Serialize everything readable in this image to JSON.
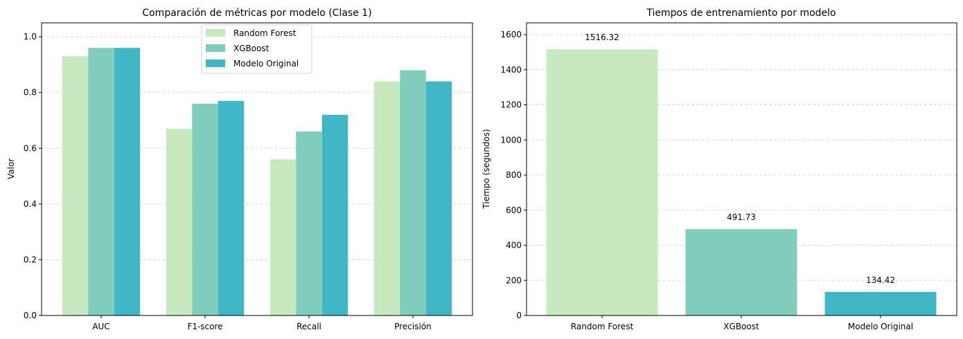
{
  "chart_data": [
    {
      "type": "bar",
      "title": "Comparación de métricas por modelo (Clase 1)",
      "xlabel": "",
      "ylabel": "Valor",
      "categories": [
        "AUC",
        "F1-score",
        "Recall",
        "Precisión"
      ],
      "series": [
        {
          "name": "Random Forest",
          "color": "#c7e9c0",
          "values": [
            0.93,
            0.67,
            0.56,
            0.84
          ]
        },
        {
          "name": "XGBoost",
          "color": "#7fcdbb",
          "values": [
            0.96,
            0.76,
            0.66,
            0.88
          ]
        },
        {
          "name": "Modelo Original",
          "color": "#41b6c4",
          "values": [
            0.96,
            0.77,
            0.72,
            0.84
          ]
        }
      ],
      "ylim": [
        0,
        1.05
      ],
      "yticks": [
        0.0,
        0.2,
        0.4,
        0.6,
        0.8,
        1.0
      ],
      "ytick_labels": [
        "0.0",
        "0.2",
        "0.4",
        "0.6",
        "0.8",
        "1.0"
      ],
      "grid": "y-dashed",
      "legend": "top-center"
    },
    {
      "type": "bar",
      "title": "Tiempos de entrenamiento por modelo",
      "xlabel": "",
      "ylabel": "Tiempo (segundos)",
      "categories": [
        "Random Forest",
        "XGBoost",
        "Modelo Original"
      ],
      "values": [
        1516.32,
        491.73,
        134.42
      ],
      "value_labels": [
        "1516.32",
        "491.73",
        "134.42"
      ],
      "colors": [
        "#c7e9c0",
        "#7fcdbb",
        "#41b6c4"
      ],
      "ylim": [
        0,
        1667
      ],
      "yticks": [
        0,
        200,
        400,
        600,
        800,
        1000,
        1200,
        1400,
        1600
      ],
      "ytick_labels": [
        "0",
        "200",
        "400",
        "600",
        "800",
        "1000",
        "1200",
        "1400",
        "1600"
      ],
      "grid": "y-dashed"
    }
  ]
}
